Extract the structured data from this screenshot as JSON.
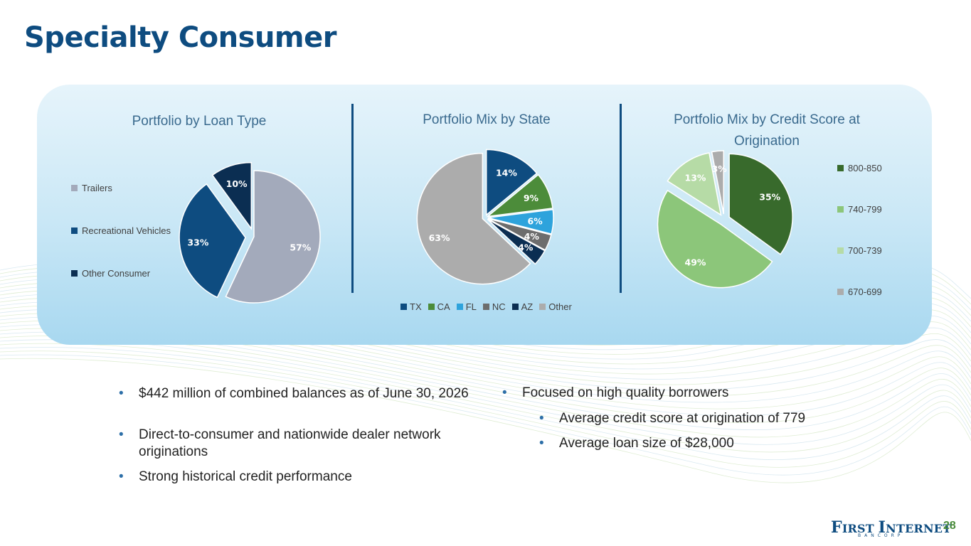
{
  "title": "Specialty Consumer",
  "colors": {
    "title": "#0e4c80",
    "divider": "#0e4c80"
  },
  "chart_data": [
    {
      "type": "pie",
      "title": "Portfolio by Loan Type",
      "legend_position": "left",
      "series": [
        {
          "name": "Trailers",
          "value": 57,
          "label": "57%",
          "color": "#a3aabb"
        },
        {
          "name": "Recreational Vehicles",
          "value": 33,
          "label": "33%",
          "color": "#0e4c80"
        },
        {
          "name": "Other Consumer",
          "value": 10,
          "label": "10%",
          "color": "#0b2e52"
        }
      ]
    },
    {
      "type": "pie",
      "title": "Portfolio Mix by State",
      "legend_position": "bottom",
      "series": [
        {
          "name": "TX",
          "value": 14,
          "label": "14%",
          "color": "#0e4c80"
        },
        {
          "name": "CA",
          "value": 9,
          "label": "9%",
          "color": "#4c8c3a"
        },
        {
          "name": "FL",
          "value": 6,
          "label": "6%",
          "color": "#2ea3dc"
        },
        {
          "name": "NC",
          "value": 4,
          "label": "4%",
          "color": "#6d6d6d"
        },
        {
          "name": "AZ",
          "value": 4,
          "label": "4%",
          "color": "#0b2e52"
        },
        {
          "name": "Other",
          "value": 63,
          "label": "63%",
          "color": "#acacac"
        }
      ]
    },
    {
      "type": "pie",
      "title": "Portfolio Mix by Credit Score at Origination",
      "legend_position": "right",
      "series": [
        {
          "name": "800-850",
          "value": 35,
          "label": "35%",
          "color": "#386a2c"
        },
        {
          "name": "740-799",
          "value": 49,
          "label": "49%",
          "color": "#8cc67a"
        },
        {
          "name": "700-739",
          "value": 13,
          "label": "13%",
          "color": "#b6dba6"
        },
        {
          "name": "670-699",
          "value": 3,
          "label": "3%",
          "color": "#acacac"
        }
      ]
    }
  ],
  "bullets_left": [
    "$442 million of combined balances as of June 30, 2026",
    "Direct-to-consumer and nationwide dealer network originations",
    "Strong historical credit performance"
  ],
  "bullets_right": {
    "main": "Focused on high quality borrowers",
    "sub": [
      "Average credit score at origination of 779",
      "Average loan size of $28,000"
    ]
  },
  "bullet_glyph": "•",
  "logo": {
    "initial": "F",
    "rest": "IRST ",
    "initial2": "I",
    "rest2": "NTERNET",
    "sub": "BANCORP"
  },
  "page_number": "28"
}
